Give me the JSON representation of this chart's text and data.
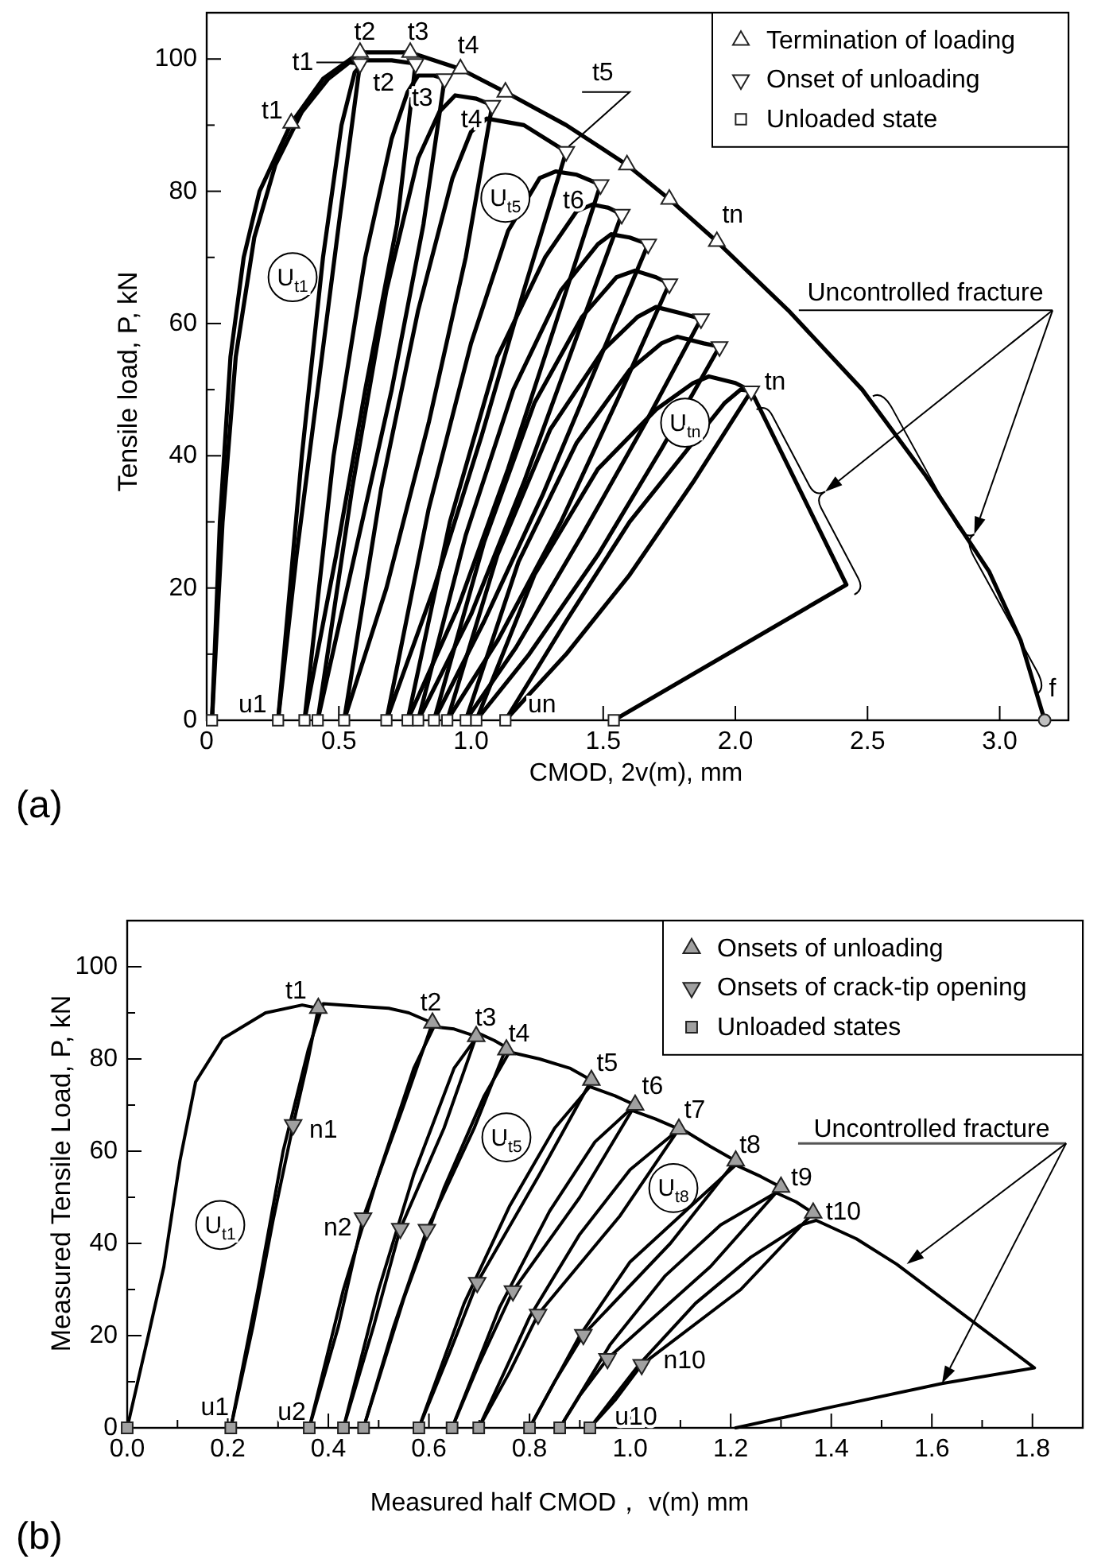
{
  "chart_data": [
    {
      "type": "line",
      "title": "(a)",
      "xlabel": "CMOD, 2v(m), mm",
      "ylabel": "Tensile load, P, kN",
      "xlim": [
        0,
        3.26
      ],
      "ylim": [
        0,
        107
      ],
      "xticks": [
        0,
        0.5,
        {
          "value": 1,
          "label": "1.0"
        },
        1.5,
        {
          "value": 2,
          "label": "2.0"
        },
        2.5,
        {
          "value": 3,
          "label": "3.0"
        }
      ],
      "yticks": [
        0,
        {
          "value": 10,
          "label": null
        },
        20,
        {
          "value": 30,
          "label": null
        },
        40,
        {
          "value": 50,
          "label": null
        },
        60,
        {
          "value": 70,
          "label": null
        },
        80,
        {
          "value": 90,
          "label": null
        },
        100
      ],
      "legend": "top right",
      "series": [
        {
          "type": "line",
          "color": "#000000",
          "x": [
            0.02,
            0.05,
            0.09,
            0.14,
            0.2,
            0.32,
            0.44,
            0.58,
            0.77,
            0.96,
            1.13,
            1.36,
            1.59,
            1.75,
            1.93,
            2.2,
            2.48,
            2.72,
            2.96,
            3.08,
            3.17
          ],
          "values": [
            0,
            30,
            55,
            70,
            80,
            90.3,
            97,
            101,
            101,
            98.5,
            95,
            90,
            84,
            78.8,
            72.4,
            62,
            50,
            37,
            22.5,
            12,
            0
          ]
        },
        {
          "type": "line",
          "color": "#000000",
          "x": [
            0.02,
            0.06,
            0.11,
            0.18,
            0.26,
            0.36,
            0.46,
            0.54,
            0.58,
            0.5,
            0.42,
            0.34,
            0.27
          ],
          "values": [
            0,
            30,
            55,
            73,
            84,
            92,
            97,
            99.5,
            99.3,
            75,
            50,
            25,
            0
          ]
        },
        {
          "type": "line",
          "color": "#000000",
          "x": [
            0.27,
            0.36,
            0.44,
            0.51,
            0.56,
            0.6,
            0.7,
            0.79,
            0.72,
            0.6,
            0.49,
            0.37
          ],
          "values": [
            0,
            40,
            70,
            90,
            98,
            99.8,
            99.8,
            99.3,
            75,
            50,
            25,
            0
          ]
        },
        {
          "type": "line",
          "color": "#000000",
          "x": [
            0.37,
            0.48,
            0.6,
            0.7,
            0.76,
            0.8,
            0.86,
            0.9,
            0.82,
            0.7,
            0.56,
            0.42
          ],
          "values": [
            0,
            40,
            70,
            88,
            95,
            97.5,
            97.5,
            97,
            75,
            50,
            25,
            0
          ]
        },
        {
          "type": "line",
          "color": "#000000",
          "x": [
            0.42,
            0.55,
            0.68,
            0.8,
            0.88,
            0.94,
            1.02,
            1.08,
            0.98,
            0.84,
            0.68,
            0.52
          ],
          "values": [
            0,
            35,
            65,
            85,
            92,
            94.5,
            94,
            93,
            70,
            45,
            20,
            0
          ]
        },
        {
          "type": "line",
          "color": "#000000",
          "x": [
            0.52,
            0.66,
            0.8,
            0.93,
            1.0,
            1.06,
            1.2,
            1.36,
            1.2,
            1.04,
            0.86,
            0.68
          ],
          "values": [
            0,
            35,
            62,
            82,
            89,
            91,
            90,
            86,
            65,
            43,
            20,
            0
          ]
        },
        {
          "type": "line",
          "color": "#000000",
          "x": [
            0.68,
            0.84,
            1.0,
            1.14,
            1.26,
            1.32,
            1.4,
            1.49,
            1.32,
            1.14,
            0.95,
            0.76
          ],
          "values": [
            0,
            32,
            57,
            74,
            82,
            83,
            82.5,
            81,
            60,
            38,
            17,
            0
          ]
        },
        {
          "type": "line",
          "color": "#000000",
          "x": [
            0.76,
            0.92,
            1.1,
            1.28,
            1.4,
            1.46,
            1.52,
            1.57,
            1.4,
            1.2,
            1.0,
            0.8
          ],
          "values": [
            0,
            30,
            55,
            70,
            77,
            78,
            77.5,
            76.5,
            58,
            36,
            16,
            0
          ]
        },
        {
          "type": "line",
          "color": "#000000",
          "x": [
            0.8,
            0.98,
            1.16,
            1.34,
            1.48,
            1.53,
            1.6,
            1.67,
            1.48,
            1.27,
            1.05,
            0.86
          ],
          "values": [
            0,
            28,
            50,
            65,
            72,
            73.5,
            73,
            72,
            54,
            34,
            15,
            0
          ]
        },
        {
          "type": "line",
          "color": "#000000",
          "x": [
            0.86,
            1.05,
            1.24,
            1.42,
            1.55,
            1.62,
            1.7,
            1.75,
            1.56,
            1.34,
            1.1,
            0.91
          ],
          "values": [
            0,
            27,
            48,
            61,
            67,
            68,
            67,
            66,
            49,
            30,
            12,
            0
          ]
        },
        {
          "type": "line",
          "color": "#000000",
          "x": [
            0.91,
            1.1,
            1.3,
            1.5,
            1.63,
            1.7,
            1.8,
            1.87,
            1.66,
            1.42,
            1.17,
            0.98
          ],
          "values": [
            0,
            25,
            44,
            56,
            61,
            62.5,
            61.5,
            60.7,
            45,
            28,
            11,
            0
          ]
        },
        {
          "type": "line",
          "color": "#000000",
          "x": [
            0.98,
            1.18,
            1.4,
            1.6,
            1.72,
            1.78,
            1.88,
            1.94,
            1.72,
            1.48,
            1.22,
            1.02
          ],
          "values": [
            0,
            24,
            42,
            53,
            57,
            58,
            57,
            56.5,
            41,
            25,
            10,
            0
          ]
        },
        {
          "type": "line",
          "color": "#000000",
          "x": [
            1.02,
            1.24,
            1.48,
            1.7,
            1.84,
            1.9,
            2.0,
            2.06,
            1.84,
            1.6,
            1.36,
            1.13
          ],
          "values": [
            0,
            22,
            38,
            47,
            51,
            52,
            51,
            49.8,
            36,
            22,
            10,
            0
          ]
        },
        {
          "color": "#000000",
          "x": [
            1.13,
            1.36,
            1.6,
            1.96,
            2.02,
            2.06,
            2.42,
            1.54
          ],
          "values": [
            0,
            15,
            30,
            48,
            50,
            49.8,
            20.5,
            0
          ]
        },
        {
          "type": "scatter",
          "name": "Termination of loading",
          "marker": "triangle",
          "color": "#ffffff",
          "x": [
            0.32,
            0.58,
            0.77,
            0.96,
            1.13,
            1.59,
            1.75,
            1.93
          ],
          "values": [
            90.3,
            101,
            101,
            98.5,
            95,
            84,
            78.8,
            72.4
          ]
        },
        {
          "type": "scatter",
          "name": "Onset of unloading",
          "marker": "triangle-down",
          "color": "#ffffff",
          "x": [
            0.58,
            0.79,
            0.9,
            1.08,
            1.36,
            1.49,
            1.57,
            1.67,
            1.75,
            1.87,
            1.94,
            2.06
          ],
          "values": [
            99.3,
            99.3,
            97,
            93,
            86,
            81,
            76.5,
            72,
            66,
            60.7,
            56.5,
            49.8
          ]
        },
        {
          "type": "scatter",
          "name": "Unloaded state",
          "marker": "square",
          "color": "#ffffff",
          "x": [
            0.02,
            0.27,
            0.37,
            0.42,
            0.52,
            0.68,
            0.76,
            0.8,
            0.86,
            0.91,
            0.98,
            1.02,
            1.13,
            1.54
          ],
          "values": [
            0,
            0,
            0,
            0,
            0,
            0,
            0,
            0,
            0,
            0,
            0,
            0,
            0,
            0
          ]
        },
        {
          "type": "scatter",
          "marker": "circle",
          "color": "#c0c0c0",
          "x": [
            3.17
          ],
          "values": [
            0
          ]
        }
      ],
      "annotations": [
        {
          "text": "t1",
          "x": 0.32,
          "y": 90.3
        },
        {
          "text": "t1",
          "x": 0.58,
          "y": 99.3
        },
        {
          "text": "t2",
          "x": 0.58,
          "y": 101
        },
        {
          "text": "t2",
          "x": 0.79,
          "y": 99.3
        },
        {
          "text": "t3",
          "x": 0.77,
          "y": 101
        },
        {
          "text": "t3",
          "x": 0.9,
          "y": 97
        },
        {
          "text": "t4",
          "x": 0.96,
          "y": 98.5
        },
        {
          "text": "t4",
          "x": 1.08,
          "y": 93
        },
        {
          "text": "t5",
          "x": 1.36,
          "y": 86
        },
        {
          "text": "t6",
          "x": 1.49,
          "y": 81
        },
        {
          "text": "tn",
          "x": 1.93,
          "y": 72.4
        },
        {
          "text": "tn",
          "x": 2.06,
          "y": 49.8
        },
        {
          "text": "u1",
          "x": 0.27,
          "y": 0
        },
        {
          "text": "un",
          "x": 1.13,
          "y": 0
        },
        {
          "text": "f",
          "x": 3.17,
          "y": 0
        },
        {
          "text": "U$_{t1}$",
          "x": 0.325,
          "y": 67
        },
        {
          "text": "U$_{t5}$",
          "x": 1.13,
          "y": 79
        },
        {
          "text": "U$_{tn}$",
          "x": 1.81,
          "y": 45
        },
        "Uncontrolled fracture"
      ]
    },
    {
      "type": "line",
      "title": "(b)",
      "xlabel": "Measured half CMOD， v(m)  mm",
      "ylabel": "Measured  Tensile Load, P, kN",
      "xlim": [
        0,
        1.9
      ],
      "ylim": [
        0,
        110
      ],
      "xticks": [
        {
          "value": 0,
          "label": "0.0"
        },
        {
          "value": 0.1,
          "label": null
        },
        0.2,
        {
          "value": 0.3,
          "label": null
        },
        0.4,
        {
          "value": 0.5,
          "label": null
        },
        0.6,
        {
          "value": 0.7,
          "label": null
        },
        0.8,
        {
          "value": 0.9,
          "label": null
        },
        {
          "value": 1,
          "label": "1.0"
        },
        {
          "value": 1.1,
          "label": null
        },
        1.2,
        {
          "value": 1.3,
          "label": null
        },
        1.4,
        {
          "value": 1.5,
          "label": null
        },
        1.6,
        {
          "value": 1.7,
          "label": null
        },
        1.8,
        {
          "value": 1.9,
          "label": null
        }
      ],
      "yticks": [
        0,
        {
          "value": 10,
          "label": null
        },
        20,
        {
          "value": 30,
          "label": null
        },
        40,
        {
          "value": 50,
          "label": null
        },
        60,
        {
          "value": 70,
          "label": null
        },
        80,
        {
          "value": 90,
          "label": null
        },
        100,
        {
          "value": 110,
          "label": null
        }
      ],
      "legend": "top right",
      "series": [
        {
          "type": "line",
          "color": "#000000",
          "x": [
            0,
            0.042,
            0.073,
            0.105,
            0.136,
            0.19,
            0.275,
            0.348,
            0.38,
            0.36,
            0.33,
            0.29,
            0.25,
            0.206
          ],
          "values": [
            0,
            20,
            35,
            58,
            75,
            84.4,
            90,
            91.7,
            91,
            80,
            65.7,
            45,
            22,
            0
          ]
        },
        {
          "type": "line",
          "color": "#000000",
          "x": [
            0.206,
            0.26,
            0.31,
            0.36,
            0.39,
            0.45,
            0.52,
            0.56,
            0.607,
            0.55,
            0.469,
            0.42,
            0.362
          ],
          "values": [
            0,
            30,
            60,
            82,
            92,
            91.5,
            91,
            90,
            87.8,
            70,
            45.5,
            22,
            0
          ]
        },
        {
          "type": "line",
          "color": "#000000",
          "x": [
            0.362,
            0.43,
            0.5,
            0.57,
            0.61,
            0.65,
            0.694,
            0.63,
            0.543,
            0.49,
            0.43
          ],
          "values": [
            0,
            30,
            55,
            78,
            87,
            86.5,
            84.9,
            65,
            43.2,
            22,
            0
          ]
        },
        {
          "type": "line",
          "color": "#000000",
          "x": [
            0.43,
            0.5,
            0.57,
            0.65,
            0.7,
            0.73,
            0.754,
            0.69,
            0.596,
            0.53,
            0.47
          ],
          "values": [
            0,
            30,
            55,
            78,
            85.5,
            84,
            82.5,
            65,
            43,
            22,
            0
          ]
        },
        {
          "type": "line",
          "color": "#000000",
          "x": [
            0.47,
            0.55,
            0.63,
            0.71,
            0.76,
            0.82,
            0.88,
            0.923,
            0.82,
            0.696,
            0.64,
            0.58
          ],
          "values": [
            0,
            28,
            52,
            72,
            81.5,
            80,
            78,
            75.4,
            55,
            31.5,
            16,
            0
          ]
        },
        {
          "type": "line",
          "color": "#000000",
          "x": [
            0.58,
            0.67,
            0.76,
            0.85,
            0.92,
            0.97,
            1.01,
            0.9,
            0.767,
            0.7,
            0.646
          ],
          "values": [
            0,
            27,
            48,
            65,
            74,
            72,
            70,
            50,
            29.7,
            14,
            0
          ]
        },
        {
          "type": "line",
          "color": "#000000",
          "x": [
            0.646,
            0.74,
            0.84,
            0.93,
            1.0,
            1.05,
            1.097,
            0.98,
            0.817,
            0.76,
            0.699
          ],
          "values": [
            0,
            26,
            47,
            62,
            69,
            67,
            64.8,
            46,
            24.6,
            12,
            0
          ]
        },
        {
          "type": "line",
          "color": "#000000",
          "x": [
            0.699,
            0.8,
            0.9,
            1.0,
            1.1,
            1.16,
            1.21,
            1.08,
            0.907,
            0.85,
            0.8
          ],
          "values": [
            0,
            24,
            42,
            56,
            65,
            61,
            57.9,
            40,
            20.2,
            10,
            0
          ]
        },
        {
          "color": "#000000",
          "x": [
            0.8,
            0.9,
            1.0,
            1.21,
            1.26,
            1.3,
            1.16,
            0.955,
            0.9,
            0.86
          ],
          "values": [
            0,
            20,
            36,
            57,
            54.5,
            52.2,
            35,
            15,
            7,
            0
          ]
        },
        {
          "type": "line",
          "color": "#000000",
          "x": [
            0.86,
            0.96,
            1.07,
            1.18,
            1.29,
            1.33,
            1.364,
            1.22,
            1.023,
            0.97,
            0.92
          ],
          "values": [
            0,
            18,
            33,
            44,
            51,
            49,
            46.6,
            30,
            13.7,
            6,
            0
          ]
        },
        {
          "type": "line",
          "color": "#000000",
          "x": [
            0.92,
            1.02,
            1.13,
            1.24,
            1.34,
            1.37,
            1.45,
            1.53,
            1.67,
            1.804,
            1.62,
            1.4,
            1.21
          ],
          "values": [
            0,
            14,
            27,
            37,
            44,
            45,
            41,
            35.5,
            24,
            13,
            9.6,
            4.5,
            0
          ]
        },
        {
          "type": "scatter",
          "name": "Onsets of unloading",
          "marker": "triangle",
          "color": "#a0a0a0",
          "x": [
            0.38,
            0.607,
            0.694,
            0.754,
            0.923,
            1.01,
            1.097,
            1.21,
            1.3,
            1.364
          ],
          "values": [
            91,
            87.8,
            84.9,
            82,
            75.4,
            70,
            64.8,
            57.9,
            52.2,
            46.6
          ]
        },
        {
          "type": "scatter",
          "name": "Onsets of crack-tip opening",
          "marker": "triangle-down",
          "color": "#a0a0a0",
          "x": [
            0.33,
            0.469,
            0.543,
            0.596,
            0.696,
            0.767,
            0.817,
            0.907,
            0.955,
            1.023
          ],
          "values": [
            65.7,
            45.5,
            43.2,
            43,
            31.5,
            29.7,
            24.6,
            20.2,
            15,
            13.7
          ]
        },
        {
          "type": "scatter",
          "name": "Unloaded states",
          "marker": "square",
          "color": "#a0a0a0",
          "x": [
            0,
            0.206,
            0.362,
            0.43,
            0.47,
            0.58,
            0.646,
            0.699,
            0.8,
            0.86,
            0.92
          ],
          "values": [
            0,
            0,
            0,
            0,
            0,
            0,
            0,
            0,
            0,
            0,
            0
          ]
        }
      ],
      "annotations": [
        {
          "text": "t1",
          "x": 0.38,
          "y": 91
        },
        {
          "text": "t2",
          "x": 0.607,
          "y": 87.8
        },
        {
          "text": "t3",
          "x": 0.694,
          "y": 84.9
        },
        {
          "text": "t4",
          "x": 0.754,
          "y": 82
        },
        {
          "text": "t5",
          "x": 0.923,
          "y": 75.4
        },
        {
          "text": "t6",
          "x": 1.01,
          "y": 70
        },
        {
          "text": "t7",
          "x": 1.097,
          "y": 64.8
        },
        {
          "text": "t8",
          "x": 1.21,
          "y": 57.9
        },
        {
          "text": "t9",
          "x": 1.3,
          "y": 52.2
        },
        {
          "text": "t10",
          "x": 1.364,
          "y": 46.6
        },
        {
          "text": "n1",
          "x": 0.33,
          "y": 65.7
        },
        {
          "text": "n2",
          "x": 0.469,
          "y": 45.5
        },
        {
          "text": "n10",
          "x": 1.023,
          "y": 13.7
        },
        {
          "text": "u1",
          "x": 0.206,
          "y": 0
        },
        {
          "text": "u2",
          "x": 0.362,
          "y": 0
        },
        {
          "text": "u10",
          "x": 0.92,
          "y": 0
        },
        {
          "text": "U$_{t1}$",
          "x": 0.185,
          "y": 44
        },
        {
          "text": "U$_{t5}$",
          "x": 0.754,
          "y": 63
        },
        {
          "text": "U$_{t8}$",
          "x": 1.086,
          "y": 52
        },
        "Uncontrolled fracture"
      ]
    }
  ]
}
